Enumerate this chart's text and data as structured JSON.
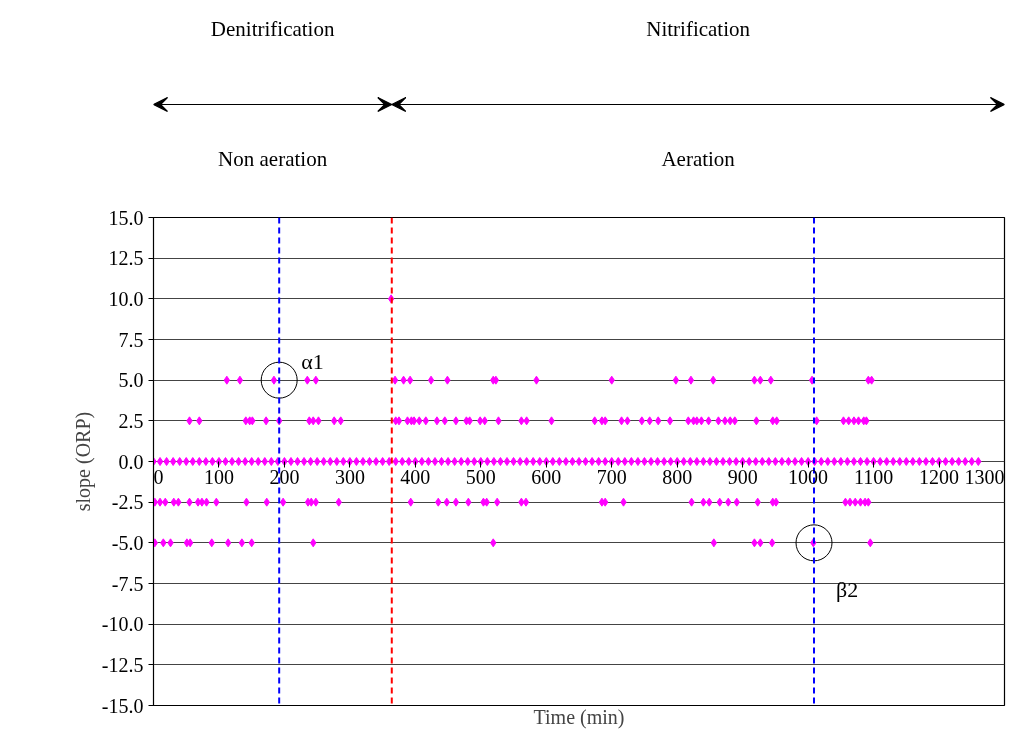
{
  "chart_data": {
    "type": "scatter",
    "xlabel": "Time (min)",
    "ylabel": "slope (ORP)",
    "xlim": [
      0,
      1300
    ],
    "xticks": [
      0,
      100,
      200,
      300,
      400,
      500,
      600,
      700,
      800,
      900,
      1000,
      1100,
      1200,
      1300
    ],
    "ylim": [
      -15,
      15
    ],
    "yticks": [
      {
        "value": -15,
        "label": "-15.0"
      },
      {
        "value": -12.5,
        "label": "-12.5"
      },
      {
        "value": -10,
        "label": "-10.0"
      },
      {
        "value": -7.5,
        "label": "-7.5"
      },
      {
        "value": -5,
        "label": "-5.0"
      },
      {
        "value": -2.5,
        "label": "-2.5"
      },
      {
        "value": 0,
        "label": "0.0"
      },
      {
        "value": 2.5,
        "label": "2.5"
      },
      {
        "value": 5,
        "label": "5.0"
      },
      {
        "value": 7.5,
        "label": "7.5"
      },
      {
        "value": 10,
        "label": "10.0"
      },
      {
        "value": 12.5,
        "label": "12.5"
      },
      {
        "value": 15,
        "label": "15.0"
      }
    ],
    "grid": "y",
    "marker": "diamond",
    "series": [
      {
        "color": "#ff00ff",
        "x": [
          0,
          10,
          20,
          30,
          40,
          50,
          60,
          70,
          80,
          90,
          100,
          110,
          120,
          130,
          140,
          150,
          160,
          170,
          180,
          190,
          200,
          210,
          220,
          230,
          240,
          250,
          260,
          270,
          280,
          290,
          300,
          310,
          320,
          330,
          340,
          350,
          360,
          370,
          380,
          390,
          400,
          410,
          420,
          430,
          440,
          450,
          460,
          470,
          480,
          490,
          500,
          510,
          520,
          530,
          540,
          550,
          560,
          570,
          580,
          590,
          600,
          610,
          620,
          630,
          640,
          650,
          660,
          670,
          680,
          690,
          700,
          710,
          720,
          730,
          740,
          750,
          760,
          770,
          780,
          790,
          800,
          810,
          820,
          830,
          840,
          850,
          860,
          870,
          880,
          890,
          900,
          910,
          920,
          930,
          940,
          950,
          960,
          970,
          980,
          990,
          1000,
          1010,
          1020,
          1030,
          1040,
          1050,
          1060,
          1070,
          1080,
          1090,
          1100,
          1110,
          1120,
          1130,
          1140,
          1150,
          1160,
          1170,
          1180,
          1190,
          1200,
          1210,
          1220,
          1230,
          1240,
          1250,
          1260
        ],
        "values": [
          0,
          0,
          0,
          0,
          0,
          0,
          0,
          0,
          0,
          0,
          0,
          0,
          0,
          0,
          0,
          0,
          0,
          0,
          0,
          0,
          0,
          0,
          0,
          0,
          0,
          0,
          0,
          0,
          0,
          0,
          0,
          0,
          0,
          0,
          0,
          0,
          0,
          0,
          0,
          0,
          0,
          0,
          0,
          0,
          0,
          0,
          0,
          0,
          0,
          0,
          0,
          0,
          0,
          0,
          0,
          0,
          0,
          0,
          0,
          0,
          0,
          0,
          0,
          0,
          0,
          0,
          0,
          0,
          0,
          0,
          0,
          0,
          0,
          0,
          0,
          0,
          0,
          0,
          0,
          0,
          0,
          0,
          0,
          0,
          0,
          0,
          0,
          0,
          0,
          0,
          0,
          0,
          0,
          0,
          0,
          0,
          0,
          0,
          0,
          0,
          0,
          0,
          0,
          0,
          0,
          0,
          0,
          0,
          0,
          0,
          0,
          0,
          0,
          0,
          0,
          0,
          0,
          0,
          0,
          0,
          0,
          0,
          0,
          0,
          0,
          0,
          0
        ]
      },
      {
        "color": "#ff00ff",
        "x": [
          112,
          132,
          184,
          235,
          248,
          369,
          382,
          392,
          424,
          449,
          519,
          523,
          585,
          700,
          798,
          821,
          855,
          918,
          927,
          943,
          1006,
          1092,
          1097
        ],
        "values": [
          5,
          5,
          5,
          5,
          5,
          5,
          5,
          5,
          5,
          5,
          5,
          5,
          5,
          5,
          5,
          5,
          5,
          5,
          5,
          5,
          5,
          5,
          5
        ]
      },
      {
        "color": "#ff00ff",
        "x": [
          55,
          70,
          141,
          147,
          151,
          172,
          192,
          238,
          244,
          252,
          276,
          286,
          370,
          375,
          388,
          394,
          398,
          406,
          416,
          433,
          445,
          462,
          478,
          483,
          499,
          506,
          527,
          562,
          570,
          608,
          674,
          685,
          690,
          715,
          724,
          746,
          758,
          771,
          789,
          817,
          825,
          830,
          837,
          848,
          863,
          873,
          881,
          888,
          921,
          946,
          952,
          1013,
          1054,
          1062,
          1070,
          1077,
          1085,
          1089
        ],
        "values": [
          2.5,
          2.5,
          2.5,
          2.5,
          2.5,
          2.5,
          2.5,
          2.5,
          2.5,
          2.5,
          2.5,
          2.5,
          2.5,
          2.5,
          2.5,
          2.5,
          2.5,
          2.5,
          2.5,
          2.5,
          2.5,
          2.5,
          2.5,
          2.5,
          2.5,
          2.5,
          2.5,
          2.5,
          2.5,
          2.5,
          2.5,
          2.5,
          2.5,
          2.5,
          2.5,
          2.5,
          2.5,
          2.5,
          2.5,
          2.5,
          2.5,
          2.5,
          2.5,
          2.5,
          2.5,
          2.5,
          2.5,
          2.5,
          2.5,
          2.5,
          2.5,
          2.5,
          2.5,
          2.5,
          2.5,
          2.5,
          2.5,
          2.5
        ]
      },
      {
        "color": "#ff00ff",
        "x": [
          2,
          10,
          18,
          31,
          38,
          55,
          68,
          74,
          81,
          96,
          142,
          173,
          198,
          236,
          241,
          248,
          283,
          393,
          435,
          448,
          462,
          481,
          504,
          509,
          525,
          562,
          569,
          685,
          690,
          718,
          822,
          840,
          849,
          865,
          878,
          891,
          923,
          946,
          951,
          1057,
          1064,
          1072,
          1080,
          1087,
          1092
        ],
        "values": [
          -2.5,
          -2.5,
          -2.5,
          -2.5,
          -2.5,
          -2.5,
          -2.5,
          -2.5,
          -2.5,
          -2.5,
          -2.5,
          -2.5,
          -2.5,
          -2.5,
          -2.5,
          -2.5,
          -2.5,
          -2.5,
          -2.5,
          -2.5,
          -2.5,
          -2.5,
          -2.5,
          -2.5,
          -2.5,
          -2.5,
          -2.5,
          -2.5,
          -2.5,
          -2.5,
          -2.5,
          -2.5,
          -2.5,
          -2.5,
          -2.5,
          -2.5,
          -2.5,
          -2.5,
          -2.5,
          -2.5,
          -2.5,
          -2.5,
          -2.5,
          -2.5,
          -2.5
        ]
      },
      {
        "color": "#ff00ff",
        "x": [
          2,
          15,
          26,
          51,
          56,
          89,
          114,
          135,
          150,
          244,
          519,
          856,
          918,
          927,
          945,
          1008,
          1095
        ],
        "values": [
          -5,
          -5,
          -5,
          -5,
          -5,
          -5,
          -5,
          -5,
          -5,
          -5,
          -5,
          -5,
          -5,
          -5,
          -5,
          -5,
          -5
        ]
      },
      {
        "color": "#ff00ff",
        "x": [
          363
        ],
        "values": [
          10
        ]
      }
    ],
    "ref_lines": [
      {
        "axis": "x",
        "value": 192,
        "color": "#0000ff",
        "line_style": "dashed"
      },
      {
        "axis": "x",
        "value": 364,
        "color": "#ff0000",
        "line_style": "dashed"
      },
      {
        "axis": "x",
        "value": 1009,
        "color": "#0000ff",
        "line_style": "dashed"
      }
    ],
    "annotations": [
      "Denitrification",
      "Nitrification",
      "Non aeration",
      "Aeration",
      {
        "text": "α1",
        "x": 192,
        "y": 5
      },
      {
        "text": "β2",
        "x": 1009,
        "y": -5
      }
    ]
  }
}
